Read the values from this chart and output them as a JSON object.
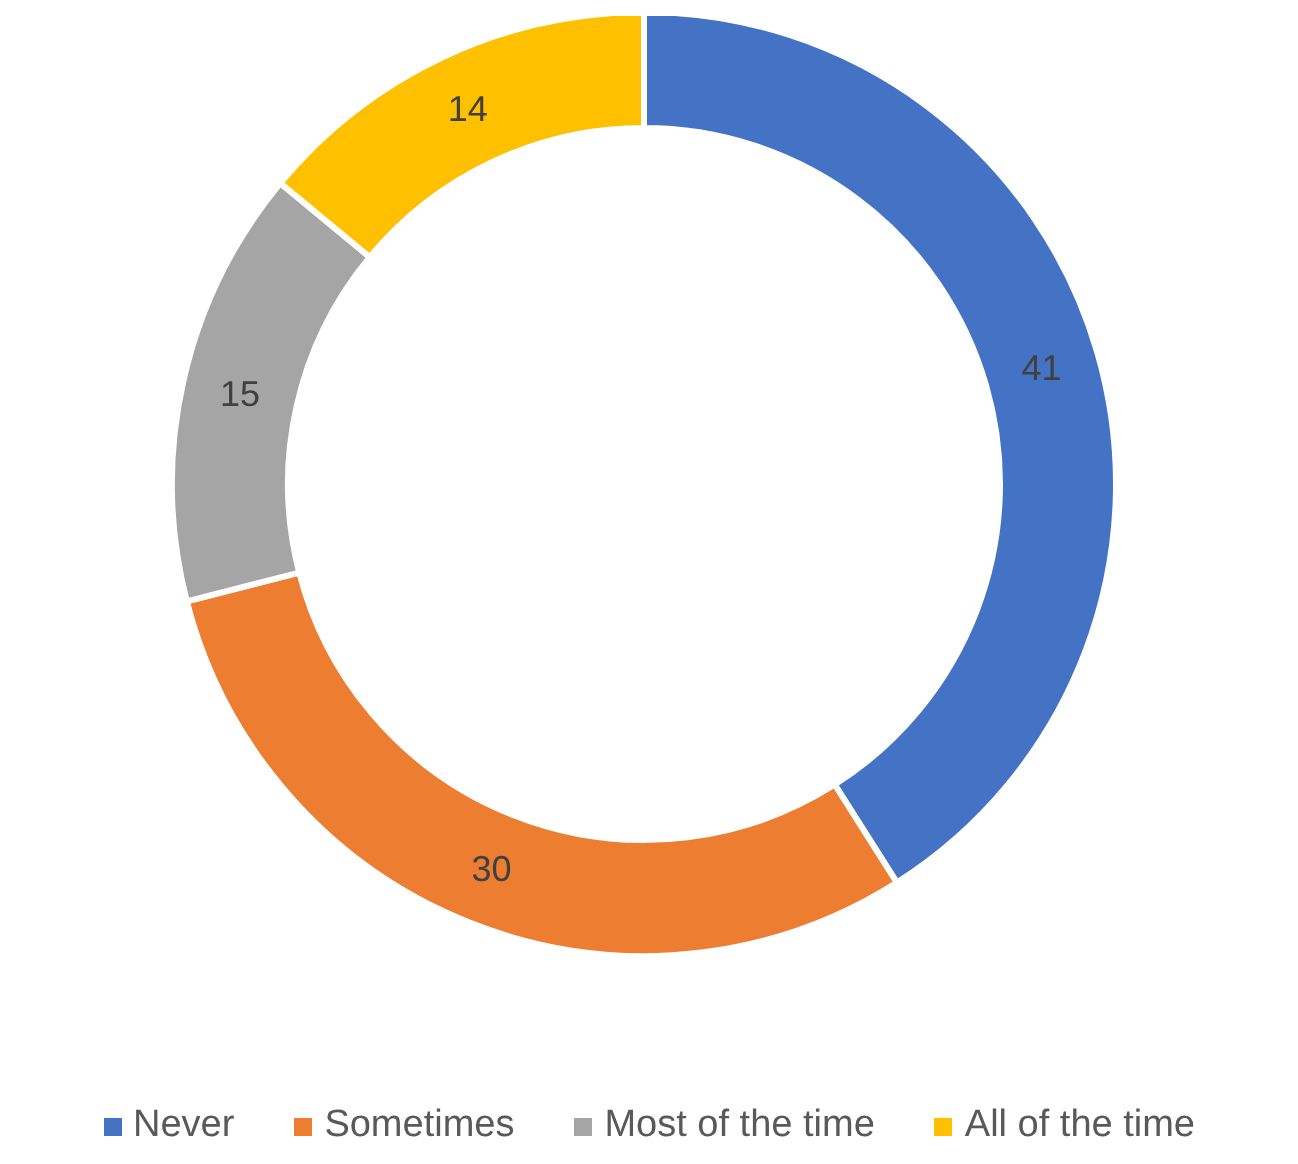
{
  "chart_data": {
    "type": "donut",
    "categories": [
      "Never",
      "Sometimes",
      "Most of the time",
      "All of the time"
    ],
    "values": [
      41,
      30,
      15,
      14
    ],
    "colors": [
      "#4472c4",
      "#ed7d31",
      "#a5a5a5",
      "#ffc000"
    ],
    "data_labels": true,
    "legend": "bottom"
  }
}
